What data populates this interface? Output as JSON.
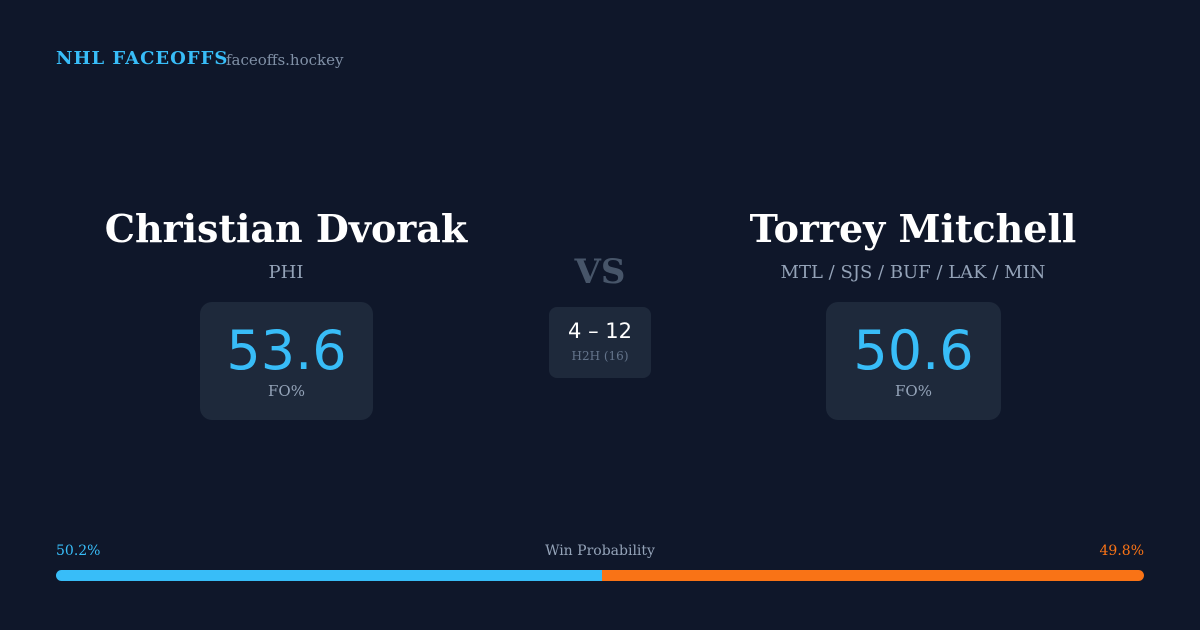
{
  "header": {
    "brand": "NHL FACEOFFS",
    "site": "faceoffs.hockey"
  },
  "players": [
    {
      "name": "Christian Dvorak",
      "team": "PHI",
      "fo_value": 53.6,
      "fo_label": "FO%"
    },
    {
      "name": "Torrey Mitchell",
      "team": "MTL / SJS / BUF / LAK / MIN",
      "fo_value": 50.6,
      "fo_label": "FO%"
    }
  ],
  "vs": "VS",
  "h2h": {
    "record": "4 – 12",
    "label": "H2H (16)"
  },
  "win_probability": {
    "label": "Win Probability",
    "values": [
      50.2,
      49.8
    ],
    "value_labels": [
      "50.2%",
      "49.8%"
    ],
    "colors": [
      "#38bdf8",
      "#f97316"
    ]
  }
}
